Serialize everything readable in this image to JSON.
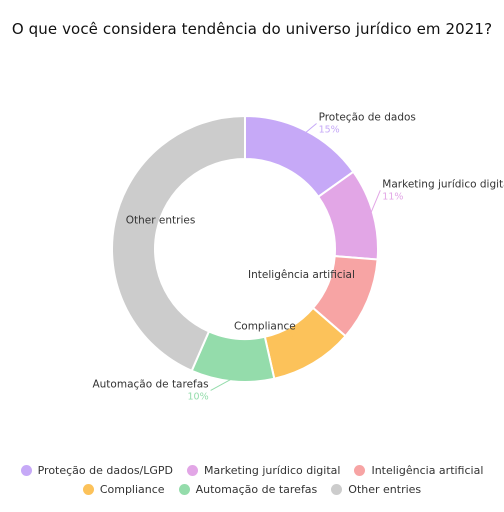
{
  "chart_data": {
    "type": "pie",
    "variant": "donut",
    "title": "O que você considera tendência do universo jurídico em 2021?",
    "slices": [
      {
        "label": "Proteção de dados/LGPD",
        "chart_label": "Proteção de dados",
        "value": 15,
        "value_label": "15%",
        "color": "#c6a9f7"
      },
      {
        "label": "Marketing jurídico digital",
        "chart_label": "Marketing jurídico digital",
        "value": 11,
        "value_label": "11%",
        "color": "#e2a6e6"
      },
      {
        "label": "Inteligência artificial",
        "chart_label": "Inteligência artificial",
        "value": 10,
        "value_label": "10%",
        "color": "#f7a4a4"
      },
      {
        "label": "Compliance",
        "chart_label": "Compliance",
        "value": 10,
        "value_label": "10%",
        "color": "#fcc25a"
      },
      {
        "label": "Automação de tarefas",
        "chart_label": "Automação de tarefas",
        "value": 10,
        "value_label": "10%",
        "color": "#94dcab"
      },
      {
        "label": "Other entries",
        "chart_label": "Other entries",
        "value": 43,
        "value_label": "43%",
        "color": "#cccccc"
      }
    ],
    "legend_position": "bottom",
    "legend_rows": [
      [
        0,
        1,
        2
      ],
      [
        3,
        4,
        5
      ]
    ]
  }
}
